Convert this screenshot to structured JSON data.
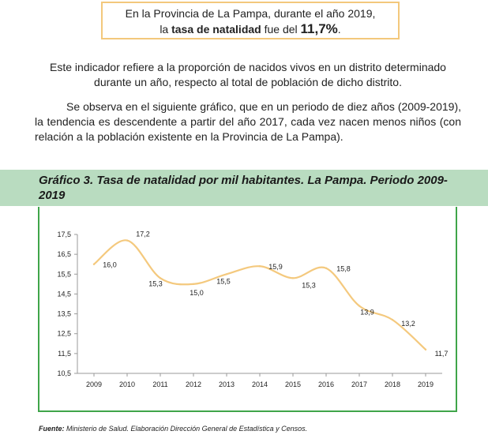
{
  "callout": {
    "line1": "En la Provincia de La Pampa, durante el año 2019,",
    "line2_prefix": "la ",
    "line2_bold": "tasa de natalidad",
    "line2_mid": " fue del ",
    "line2_value": "11,7%",
    "line2_suffix": "."
  },
  "paragraph1": "Este indicador refiere a la proporción de nacidos vivos en un distrito determinado durante un año, respecto al total de población de dicho distrito.",
  "paragraph2": "Se observa en el siguiente gráfico, que en un periodo de diez años (2009-2019), la tendencia es descendente a partir del año 2017, cada vez nacen menos niños (con relación a la población existente en la Provincia de La Pampa).",
  "chart_title": "Gráfico 3. Tasa de natalidad por mil habitantes. La Pampa. Periodo 2009-2019",
  "source": {
    "label": "Fuente:",
    "text": " Ministerio de Salud. Elaboración Dirección General de Estadística y Censos."
  },
  "colors": {
    "line": "#f4c97e",
    "frame": "#3fa54a",
    "band": "#b9dcc0",
    "callout_border": "#f3c87c"
  },
  "chart_data": {
    "type": "line",
    "title": "Gráfico 3. Tasa de natalidad por mil habitantes. La Pampa. Periodo 2009-2019",
    "categories": [
      "2009",
      "2010",
      "2011",
      "2012",
      "2013",
      "2014",
      "2015",
      "2016",
      "2017",
      "2018",
      "2019"
    ],
    "values": [
      16.0,
      17.2,
      15.3,
      15.0,
      15.5,
      15.9,
      15.3,
      15.8,
      13.9,
      13.2,
      11.7
    ],
    "value_labels": [
      "16,0",
      "17,2",
      "15,3",
      "15,0",
      "15,5",
      "15,9",
      "15,3",
      "15,8",
      "13,9",
      "13,2",
      "11,7"
    ],
    "y_ticks": [
      10.5,
      11.5,
      12.5,
      13.5,
      14.5,
      15.5,
      16.5,
      17.5
    ],
    "y_tick_labels": [
      "10,5",
      "11,5",
      "12,5",
      "13,5",
      "14,5",
      "15,5",
      "16,5",
      "17,5"
    ],
    "ylim": [
      10.5,
      17.5
    ],
    "xlabel": "",
    "ylabel": "",
    "grid": false,
    "legend": "none"
  }
}
